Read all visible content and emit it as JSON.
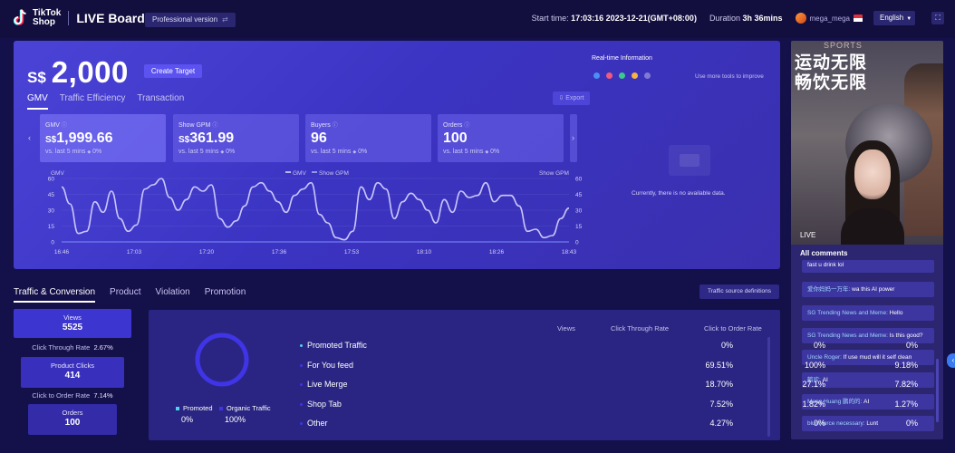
{
  "header": {
    "logo_line1": "TikTok",
    "logo_line2": "Shop",
    "board_title": "LIVE Board",
    "version": "Professional version",
    "start_label": "Start time:",
    "start_value": "17:03:16 2023-12-21(GMT+08:00)",
    "duration_label": "Duration",
    "duration_value": "3h 36mins",
    "user_name": "mega_mega",
    "language": "English"
  },
  "gmv": {
    "currency": "S$",
    "value": "2,000",
    "create_target": "Create Target",
    "tabs": [
      "GMV",
      "Traffic Efficiency",
      "Transaction"
    ],
    "export": "Export",
    "metrics": [
      {
        "label": "GMV",
        "currency": "S$",
        "value": "1,999.66",
        "sub": "vs. last 5 mins",
        "change": "0%"
      },
      {
        "label": "Show GPM",
        "currency": "S$",
        "value": "361.99",
        "sub": "vs. last 5 mins",
        "change": "0%"
      },
      {
        "label": "Buyers",
        "currency": "",
        "value": "96",
        "sub": "vs. last 5 mins",
        "change": "0%"
      },
      {
        "label": "Orders",
        "currency": "",
        "value": "100",
        "sub": "vs. last 5 mins",
        "change": "0%"
      }
    ]
  },
  "chart_data": {
    "type": "line",
    "left_axis_title": "GMV",
    "right_axis_title": "Show GPM",
    "legend": [
      "GMV",
      "Show GPM"
    ],
    "y_ticks": [
      0,
      15,
      30,
      45,
      60
    ],
    "ylim": [
      0,
      60
    ],
    "x_ticks": [
      "16:46",
      "17:03",
      "17:20",
      "17:36",
      "17:53",
      "18:10",
      "18:26",
      "18:43"
    ],
    "series": [
      {
        "name": "GMV",
        "values": [
          52,
          36,
          8,
          10,
          38,
          28,
          48,
          22,
          10,
          16,
          50,
          54,
          60,
          42,
          30,
          40,
          52,
          48,
          54,
          22,
          14,
          20,
          34,
          52,
          56,
          48,
          38,
          28,
          44,
          50,
          56,
          26,
          18,
          4,
          2,
          10,
          52,
          40,
          56,
          50,
          22,
          38,
          46,
          40,
          30,
          18,
          40,
          28,
          48,
          42,
          44,
          56,
          38,
          44,
          44,
          34,
          10,
          12,
          4,
          6,
          22,
          32
        ]
      },
      {
        "name": "Show GPM",
        "values": [
          0,
          0,
          0,
          0,
          0,
          0,
          0,
          0,
          0,
          0,
          0,
          0,
          0,
          0,
          0,
          0,
          0,
          0,
          0,
          0,
          0,
          0,
          0,
          0,
          0,
          0,
          0,
          0,
          0,
          0,
          0,
          0,
          0,
          0,
          0,
          0,
          0,
          0,
          0,
          0,
          0,
          0,
          0,
          0,
          0,
          0,
          0,
          0,
          0,
          0,
          0,
          0,
          0,
          0,
          0,
          0,
          0,
          0,
          0,
          0,
          0,
          0
        ]
      }
    ]
  },
  "realtime": {
    "title": "Real-time Information",
    "more": "Use more tools to improve",
    "empty": "Currently, there is no available data."
  },
  "video": {
    "cn_line1": "运动无限",
    "cn_line2": "畅饮无限",
    "live_tag": "LIVE",
    "top_text": "SPORTS",
    "comments_title": "All comments",
    "comments": [
      {
        "name": "",
        "text": "fast u drink lol"
      },
      {
        "name": "爱你妈妈一万年:",
        "text": " wa this AI power"
      },
      {
        "name": "SG Trending News and Meme:",
        "text": " Hello"
      },
      {
        "name": "SG Trending News and Meme:",
        "text": " Is this good?"
      },
      {
        "name": "Uncle Roger:",
        "text": " If use mud will it self clean"
      },
      {
        "name": "鹤欢:",
        "text": " AI"
      },
      {
        "name": "Meng Huang 鹏的的:",
        "text": " AI"
      },
      {
        "name": "blunt force necessary:",
        "text": " Lunt"
      }
    ]
  },
  "bottom": {
    "tabs": [
      "Traffic & Conversion",
      "Product",
      "Violation",
      "Promotion"
    ],
    "traffic_defs": "Traffic source definitions",
    "funnel": {
      "views_label": "Views",
      "views_value": "5525",
      "ctr_label": "Click Through Rate",
      "ctr_value": "2.67%",
      "clicks_label": "Product Clicks",
      "clicks_value": "414",
      "cor_label": "Click to Order Rate",
      "cor_value": "7.14%",
      "orders_label": "Orders",
      "orders_value": "100"
    },
    "donut_legend": [
      {
        "label": "Promoted",
        "value": "0%",
        "color": "#4fd1f2"
      },
      {
        "label": "Organic Traffic",
        "value": "100%",
        "color": "#3f34e6"
      }
    ],
    "columns": [
      "Views",
      "Click Through Rate",
      "Click to Order Rate"
    ],
    "rows": [
      {
        "name": "Promoted Traffic",
        "views": "0%",
        "ctr": "0%",
        "cor": "0%"
      },
      {
        "name": "For You feed",
        "views": "69.51%",
        "ctr": "100%",
        "cor": "9.18%"
      },
      {
        "name": "Live Merge",
        "views": "18.70%",
        "ctr": "27.1%",
        "cor": "7.82%"
      },
      {
        "name": "Shop Tab",
        "views": "7.52%",
        "ctr": "1.82%",
        "cor": "1.27%"
      },
      {
        "name": "Other",
        "views": "4.27%",
        "ctr": "0%",
        "cor": "0%"
      }
    ]
  }
}
